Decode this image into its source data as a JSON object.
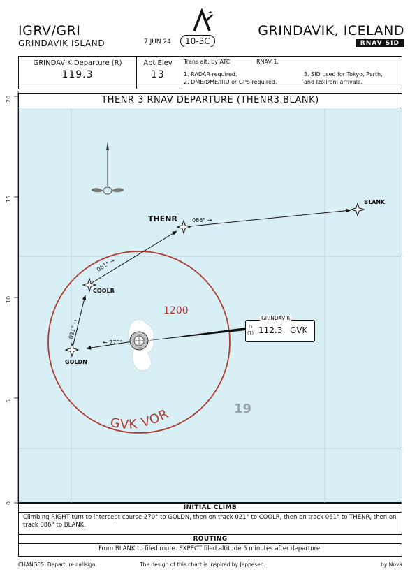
{
  "header": {
    "airport_codes": "IGRV/GRI",
    "airport_name": "GRINDAVIK ISLAND",
    "date": "7 JUN 24",
    "chart_index": "10-3C",
    "city": "GRINDAVIK, ICELAND",
    "chart_type": "RNAV SID"
  },
  "info": {
    "departure_label": "GRINDAVIK Departure (R)",
    "departure_freq": "119.3",
    "elev_label": "Apt Elev",
    "elev_value": "13",
    "trans_alt": "Trans alt: by ATC",
    "rnav": "RNAV 1.",
    "note1": "1. RADAR required.",
    "note2": "2. DME/DME/IRU or GPS required.",
    "note3a": "3. SID used for Tokyo, Perth,",
    "note3b": "and Izolirani arrivals."
  },
  "title": "THENR 3 RNAV DEPARTURE (THENR3.BLANK)",
  "map": {
    "lat_ticks": [
      "0",
      "5",
      "10",
      "15",
      "20"
    ],
    "compass_label": "N",
    "waypoints": {
      "thenr": "THENR",
      "blank": "BLANK",
      "coolr": "COOLR",
      "goldn": "GOLDN"
    },
    "tracks": {
      "thenr_blank": "086°",
      "coolr_thenr": "061°",
      "goldn_coolr": "021°",
      "vor_goldn": "270°"
    },
    "msa_altitude": "1200",
    "vor_name": "GVK VOR",
    "navaid": {
      "name": "GRINDAVIK",
      "freq": "112.3",
      "ident": "GVK",
      "d_label": "D",
      "t_label": "(T)"
    },
    "runway_label": "19",
    "colors": {
      "water": "#d8eff5",
      "msa": "#b03a32",
      "track": "#111111"
    }
  },
  "initial_climb": {
    "heading": "INITIAL CLIMB",
    "text": "Climbing RIGHT turn to intercept course 270° to GOLDN, then on track 021° to COOLR, then on track 061° to THENR, then on track 086° to BLANK."
  },
  "routing": {
    "heading": "ROUTING",
    "text": "From BLANK to filed route. EXPECT filed altitude 5 minutes after departure."
  },
  "footer": {
    "changes": "CHANGES:   Departure callsign.",
    "design": "The design of this chart is inspired by Jeppesen.",
    "author": "by Nova"
  }
}
